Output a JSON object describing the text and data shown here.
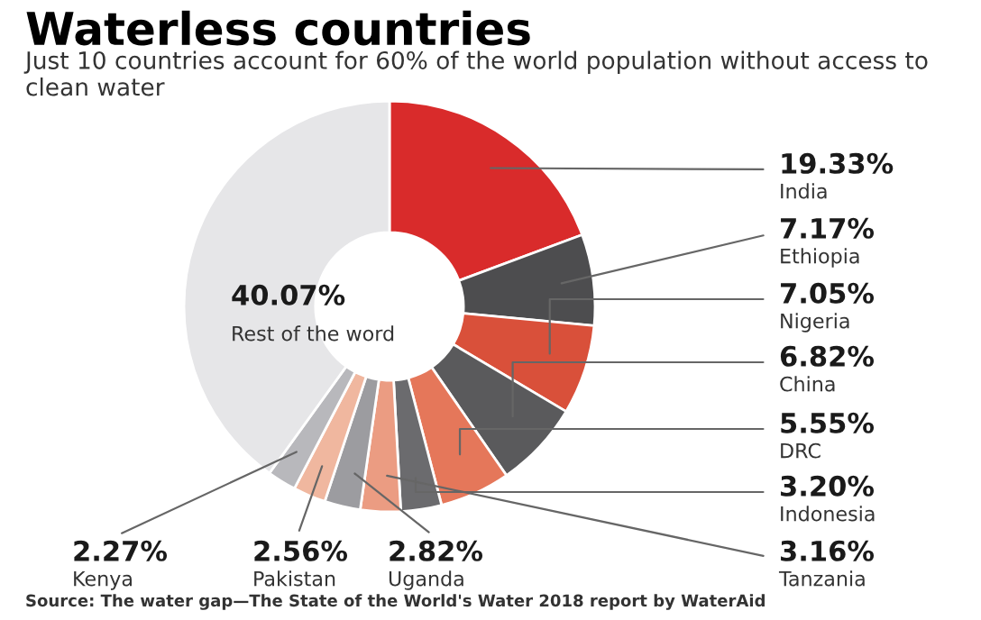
{
  "chart_data": {
    "type": "donut",
    "title": "Waterless countries",
    "subtitle": "Just 10 countries account for 60% of the world population without access to clean water",
    "categories": [
      "India",
      "Ethiopia",
      "Nigeria",
      "China",
      "DRC",
      "Indonesia",
      "Tanzania",
      "Uganda",
      "Pakistan",
      "Kenya",
      "Rest of the word"
    ],
    "values": [
      19.33,
      7.17,
      7.05,
      6.82,
      5.55,
      3.2,
      3.16,
      2.82,
      2.56,
      2.27,
      40.07
    ],
    "value_labels": [
      "19.33%",
      "7.17%",
      "7.05%",
      "6.82%",
      "5.55%",
      "3.20%",
      "3.16%",
      "2.82%",
      "2.56%",
      "2.27%",
      "40.07%"
    ],
    "colors": [
      "#d92b2b",
      "#4d4d4f",
      "#d9503a",
      "#5a5a5c",
      "#e5775a",
      "#6b6b6e",
      "#eb9c82",
      "#9c9ca0",
      "#f0b79f",
      "#b8b8bc",
      "#e6e6e8"
    ],
    "annotations": [
      "Source: The water gap—The State of the World's Water 2018 report by WaterAid"
    ]
  }
}
